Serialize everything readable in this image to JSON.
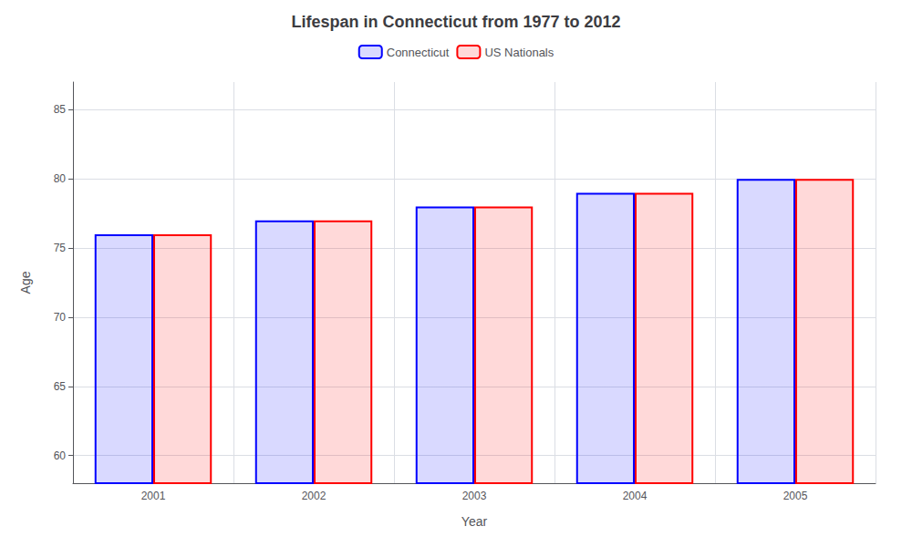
{
  "chart_data": {
    "type": "bar",
    "title": "Lifespan in Connecticut from 1977 to 2012",
    "x_label": "Year",
    "y_label": "Age",
    "categories": [
      "2001",
      "2002",
      "2003",
      "2004",
      "2005"
    ],
    "series": [
      {
        "name": "Connecticut",
        "color": "#0000ff",
        "values": [
          76,
          77,
          78,
          79,
          80
        ]
      },
      {
        "name": "US Nationals",
        "color": "#ff0000",
        "values": [
          76,
          77,
          78,
          79,
          80
        ]
      }
    ],
    "ylim": [
      58,
      87
    ],
    "yticks": [
      60,
      65,
      70,
      75,
      80,
      85
    ],
    "grid": true,
    "legend": "top"
  }
}
